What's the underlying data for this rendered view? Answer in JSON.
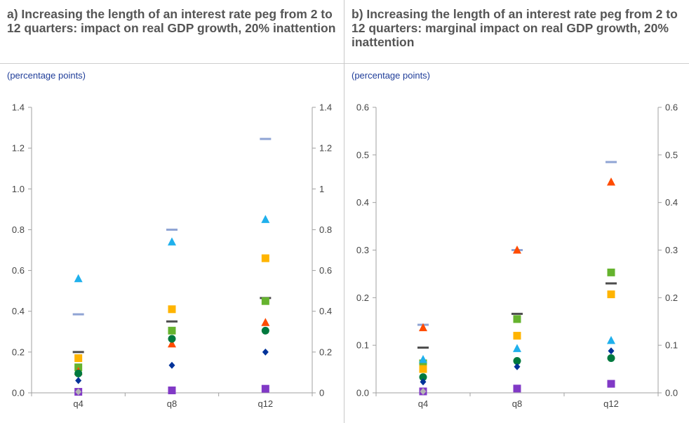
{
  "panels": [
    {
      "title": "a) Increasing the length of an interest rate peg from 2 to 12 quarters: impact on real GDP growth, 20% inattention",
      "unit": "(percentage points)"
    },
    {
      "title": "b) Increasing the length of an interest rate peg from 2 to 12 quarters: marginal impact on real GDP growth, 20% inattention",
      "unit": "(percentage points)"
    }
  ],
  "chart_data": [
    {
      "type": "scatter",
      "categories": [
        "q4",
        "q8",
        "q12"
      ],
      "ylim": [
        0,
        1.4
      ],
      "yticks": [
        "0.0",
        "0.2",
        "0.4",
        "0.6",
        "0.8",
        "1.0",
        "1.2",
        "1.4"
      ],
      "yticks_right": [
        "0",
        "0.2",
        "0.4",
        "0.6",
        "0.8",
        "1",
        "1.2",
        "1.4"
      ],
      "series": [
        {
          "marker": "dash",
          "color": "#8fa4d4",
          "values": [
            0.385,
            0.8,
            1.245
          ]
        },
        {
          "marker": "triangle",
          "color": "#1fb0ec",
          "values": [
            0.56,
            0.74,
            0.85
          ]
        },
        {
          "marker": "square",
          "color": "#ffb400",
          "values": [
            0.17,
            0.41,
            0.66
          ]
        },
        {
          "marker": "dash",
          "color": "#4d4d4d",
          "values": [
            0.2,
            0.35,
            0.465
          ]
        },
        {
          "marker": "square",
          "color": "#65b32e",
          "values": [
            0.125,
            0.305,
            0.45
          ]
        },
        {
          "marker": "triangle",
          "color": "#ff4b00",
          "values": [
            0.105,
            0.24,
            0.345
          ]
        },
        {
          "marker": "circle",
          "color": "#00793e",
          "values": [
            0.095,
            0.265,
            0.305
          ]
        },
        {
          "marker": "diamond",
          "color": "#003299",
          "values": [
            0.06,
            0.135,
            0.2
          ]
        },
        {
          "marker": "square",
          "color": "#8139c6",
          "values": [
            0.005,
            0.012,
            0.02
          ]
        },
        {
          "marker": "diamond",
          "color": "#b4b4b4",
          "values": [
            0.005,
            null,
            null
          ]
        }
      ]
    },
    {
      "type": "scatter",
      "categories": [
        "q4",
        "q8",
        "q12"
      ],
      "ylim": [
        0,
        0.6
      ],
      "yticks": [
        "0.0",
        "0.1",
        "0.2",
        "0.3",
        "0.4",
        "0.5",
        "0.6"
      ],
      "yticks_right": [
        "0.0",
        "0.1",
        "0.2",
        "0.3",
        "0.4",
        "0.5",
        "0.6"
      ],
      "series": [
        {
          "marker": "dash",
          "color": "#8fa4d4",
          "values": [
            0.143,
            0.3,
            0.485
          ]
        },
        {
          "marker": "triangle",
          "color": "#ff4b00",
          "values": [
            0.137,
            0.3,
            0.443
          ]
        },
        {
          "marker": "square",
          "color": "#65b32e",
          "values": [
            0.062,
            0.155,
            0.253
          ]
        },
        {
          "marker": "dash",
          "color": "#4d4d4d",
          "values": [
            0.095,
            0.166,
            0.23
          ]
        },
        {
          "marker": "square",
          "color": "#ffb400",
          "values": [
            0.05,
            0.12,
            0.207
          ]
        },
        {
          "marker": "triangle",
          "color": "#1fb0ec",
          "values": [
            0.07,
            0.093,
            0.11
          ]
        },
        {
          "marker": "circle",
          "color": "#00793e",
          "values": [
            0.033,
            0.067,
            0.073
          ]
        },
        {
          "marker": "diamond",
          "color": "#003299",
          "values": [
            0.023,
            0.055,
            0.088
          ]
        },
        {
          "marker": "square",
          "color": "#8139c6",
          "values": [
            0.003,
            0.009,
            0.019
          ]
        },
        {
          "marker": "diamond",
          "color": "#b4b4b4",
          "values": [
            0.003,
            null,
            null
          ]
        }
      ]
    }
  ]
}
